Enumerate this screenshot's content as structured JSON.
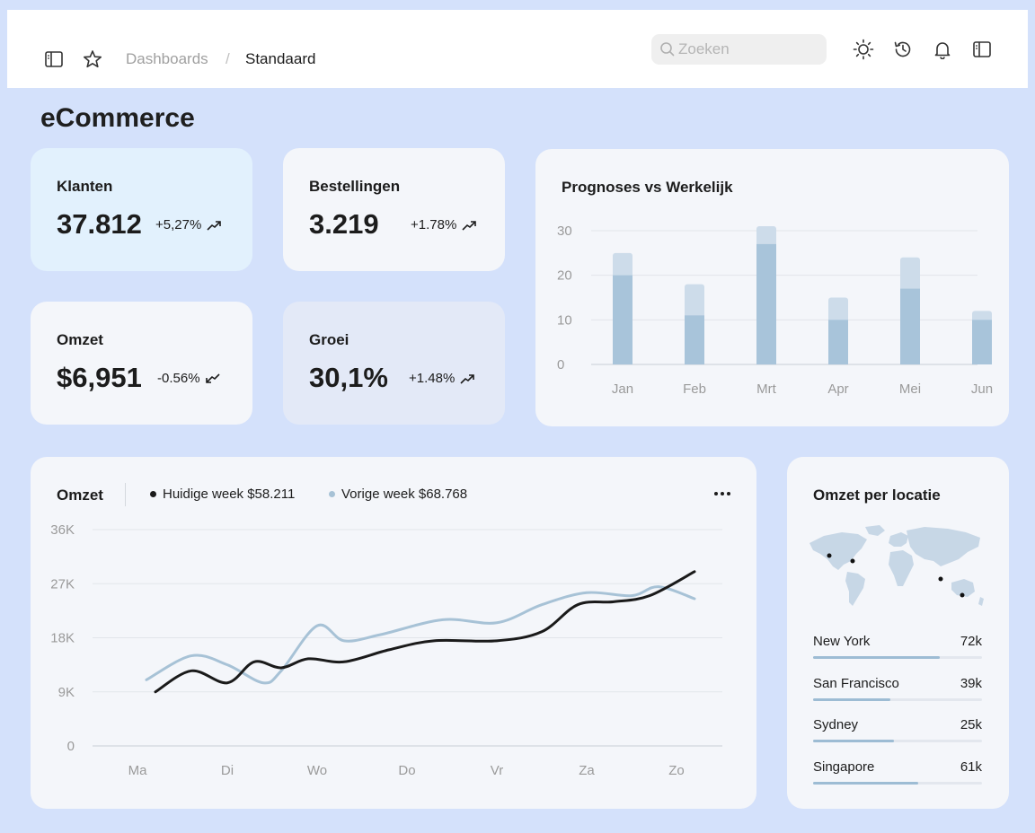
{
  "header": {
    "breadcrumb_parent": "Dashboards",
    "breadcrumb_sep": "/",
    "breadcrumb_current": "Standaard",
    "search_placeholder": "Zoeken",
    "icons": [
      "sidebar-toggle-icon",
      "star-icon",
      "search-icon",
      "sun-icon",
      "history-icon",
      "bell-icon",
      "panel-icon"
    ]
  },
  "page": {
    "title": "eCommerce"
  },
  "stats": [
    {
      "title": "Klanten",
      "value": "37.812",
      "change": "+5,27%",
      "trend": "up"
    },
    {
      "title": "Bestellingen",
      "value": "3.219",
      "change": "+1.78%",
      "trend": "up"
    },
    {
      "title": "Omzet",
      "value": "$6,951",
      "change": "-0.56%",
      "trend": "down"
    },
    {
      "title": "Groei",
      "value": "30,1%",
      "change": "+1.48%",
      "trend": "up"
    }
  ],
  "forecast": {
    "title": "Prognoses vs Werkelijk",
    "chart_data": {
      "type": "bar",
      "categories": [
        "Jan",
        "Feb",
        "Mrt",
        "Apr",
        "Mei",
        "Jun"
      ],
      "series": [
        {
          "values": [
            20,
            11,
            27,
            10,
            17,
            10
          ],
          "color": "#a8c4da"
        },
        {
          "values": [
            25,
            18,
            31,
            15,
            24,
            12
          ],
          "color": "#cddcea"
        }
      ],
      "stacked": false,
      "ylim": [
        0,
        30
      ],
      "yticks": [
        0,
        10,
        20,
        30
      ],
      "grid": true
    }
  },
  "revenue": {
    "title": "Omzet",
    "legend_current": "Huidige week $58.211",
    "legend_previous": "Vorige week $68.768",
    "more_icon": "more-icon",
    "chart_data": {
      "type": "line",
      "x": [
        "Ma",
        "Di",
        "Wo",
        "Do",
        "Vr",
        "Za",
        "Zo"
      ],
      "yticks": [
        "0",
        "9K",
        "18K",
        "27K",
        "36K"
      ],
      "ylim": [
        0,
        36000
      ],
      "grid": true,
      "series": [
        {
          "name": "Huidige week",
          "color": "#1a1a1a",
          "points": [
            [
              0.2,
              9000
            ],
            [
              0.6,
              12500
            ],
            [
              1.0,
              10500
            ],
            [
              1.3,
              14000
            ],
            [
              1.6,
              13000
            ],
            [
              1.9,
              14500
            ],
            [
              2.3,
              14000
            ],
            [
              2.8,
              16000
            ],
            [
              3.3,
              17500
            ],
            [
              4.0,
              17500
            ],
            [
              4.5,
              19000
            ],
            [
              4.9,
              23500
            ],
            [
              5.3,
              24000
            ],
            [
              5.7,
              25000
            ],
            [
              6.2,
              29000
            ]
          ]
        },
        {
          "name": "Vorige week",
          "color": "#a7c2d6",
          "points": [
            [
              0.1,
              11000
            ],
            [
              0.6,
              15000
            ],
            [
              1.0,
              13500
            ],
            [
              1.4,
              10500
            ],
            [
              1.6,
              12500
            ],
            [
              2.0,
              20000
            ],
            [
              2.3,
              17500
            ],
            [
              2.7,
              18500
            ],
            [
              3.4,
              21000
            ],
            [
              4.0,
              20500
            ],
            [
              4.5,
              23500
            ],
            [
              5.0,
              25500
            ],
            [
              5.5,
              25000
            ],
            [
              5.8,
              26500
            ],
            [
              6.2,
              24500
            ]
          ]
        }
      ]
    }
  },
  "locations": {
    "title": "Omzet per locatie",
    "items": [
      {
        "name": "New York",
        "value": "72k",
        "fraction": 0.75
      },
      {
        "name": "San Francisco",
        "value": "39k",
        "fraction": 0.46
      },
      {
        "name": "Sydney",
        "value": "25k",
        "fraction": 0.48
      },
      {
        "name": "Singapore",
        "value": "61k",
        "fraction": 0.62
      }
    ]
  }
}
